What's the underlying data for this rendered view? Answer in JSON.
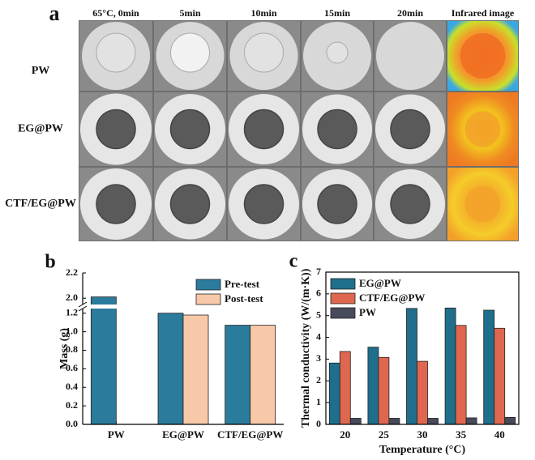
{
  "photo_panel": {
    "label": "a",
    "columns": [
      "65°C, 0min",
      "5min",
      "10min",
      "15min",
      "20min",
      "Infrared image"
    ],
    "rows": [
      "PW",
      "EG@PW",
      "CTF/EG@PW"
    ]
  },
  "chart_data": [
    {
      "type": "bar",
      "panel_label": "b",
      "y_label": "Mass (g)",
      "categories": [
        "PW",
        "EG@PW",
        "CTF/EG@PW"
      ],
      "series": [
        {
          "name": "Pre-test",
          "color": "#2b7b9c",
          "values": [
            2.01,
            1.2,
            1.07
          ]
        },
        {
          "name": "Post-test",
          "color": "#f7c9a8",
          "values": [
            null,
            1.18,
            1.07
          ]
        }
      ],
      "ylim": [
        0,
        2.2
      ],
      "axis_break": [
        1.25,
        1.95
      ],
      "yticks": [
        {
          "value": 0,
          "label": "0.0"
        },
        0.2,
        0.4,
        0.6,
        0.8,
        {
          "value": 1,
          "label": "1.0"
        },
        1.2,
        {
          "value": 2,
          "label": "2.0"
        },
        2.2
      ],
      "legend": "upper right"
    },
    {
      "type": "bar",
      "panel_label": "c",
      "y_label": "Thermal conductivity (W/(m·K))",
      "x_label": "Temperature (°C)",
      "categories": [
        "20",
        "25",
        "30",
        "35",
        "40"
      ],
      "series": [
        {
          "name": "EG@PW",
          "color": "#1f6e8c",
          "values": [
            2.82,
            3.55,
            5.33,
            5.35,
            5.25
          ]
        },
        {
          "name": "CTF/EG@PW",
          "color": "#e0674f",
          "values": [
            3.35,
            3.08,
            2.9,
            4.55,
            4.42
          ]
        },
        {
          "name": "PW",
          "color": "#474a5a",
          "values": [
            0.28,
            0.28,
            0.28,
            0.3,
            0.32
          ]
        }
      ],
      "ylim": [
        0,
        7
      ],
      "yticks": [
        0,
        1,
        2,
        3,
        4,
        5,
        6,
        7
      ],
      "legend": "upper left"
    }
  ]
}
